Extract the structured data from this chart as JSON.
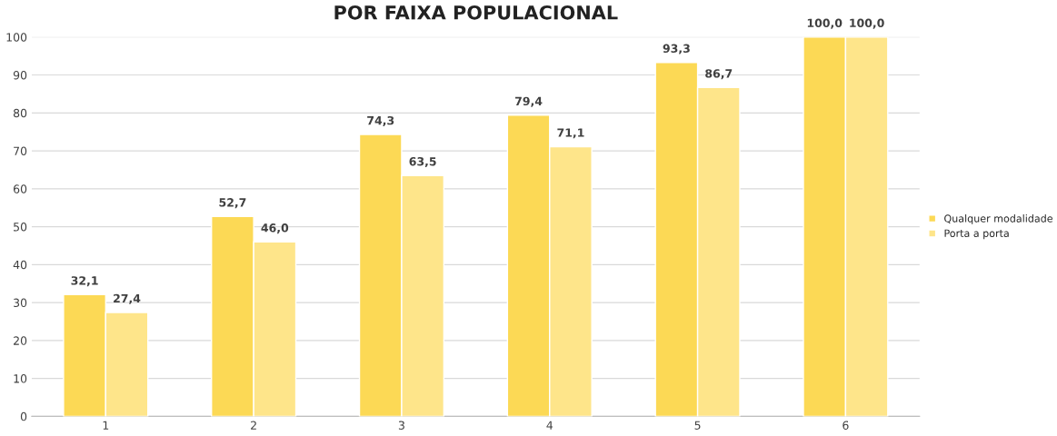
{
  "chart_data": {
    "type": "bar",
    "title": "POR FAIXA POPULACIONAL",
    "categories": [
      "1",
      "2",
      "3",
      "4",
      "5",
      "6"
    ],
    "series": [
      {
        "name": "Qualquer modalidade",
        "color": "#fcd955",
        "values": [
          32.1,
          52.7,
          74.3,
          79.4,
          93.3,
          100.0
        ],
        "value_labels": [
          "32,1",
          "52,7",
          "74,3",
          "79,4",
          "93,3",
          "100,0"
        ]
      },
      {
        "name": "Porta a porta",
        "color": "#fee58a",
        "values": [
          27.4,
          46.0,
          63.5,
          71.1,
          86.7,
          100.0
        ],
        "value_labels": [
          "27,4",
          "46,0",
          "63,5",
          "71,1",
          "86,7",
          "100,0"
        ]
      }
    ],
    "ylim": [
      0,
      100
    ],
    "yticks": [
      0,
      10,
      20,
      30,
      40,
      50,
      60,
      70,
      80,
      90,
      100
    ],
    "grid": "y",
    "legend": "right"
  }
}
